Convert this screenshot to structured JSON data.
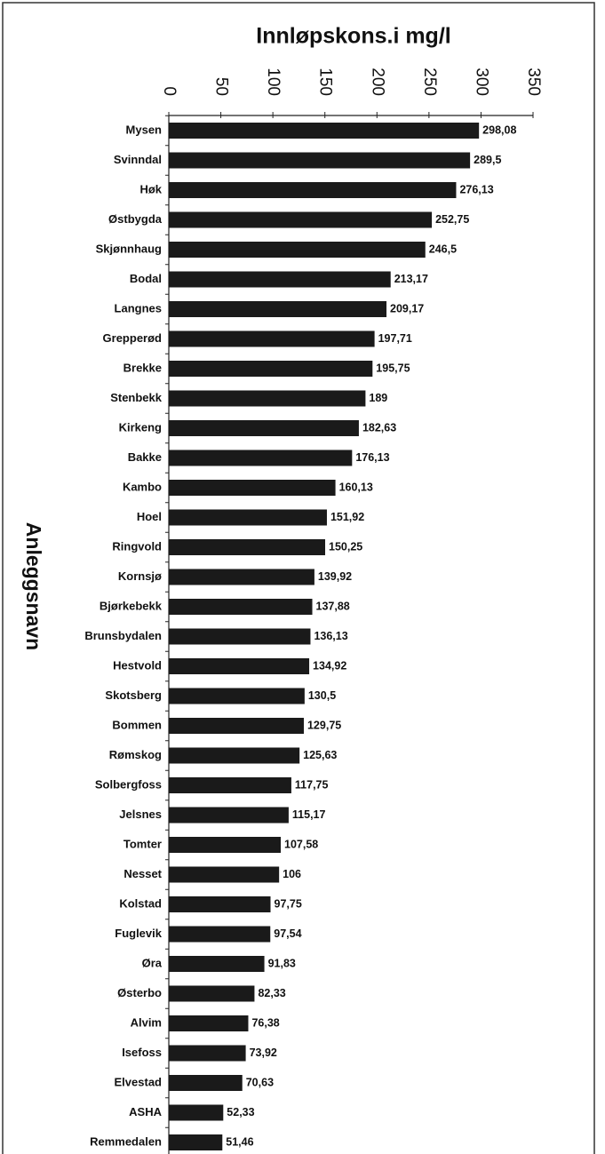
{
  "chart_data": {
    "type": "bar",
    "orientation": "horizontal",
    "title": "Innløpskons.i mg/l",
    "y_label": "Anleggsnavn",
    "categories": [
      "Mysen",
      "Svinndal",
      "Høk",
      "Østbygda",
      "Skjønnhaug",
      "Bodal",
      "Langnes",
      "Grepperød",
      "Brekke",
      "Stenbekk",
      "Kirkeng",
      "Bakke",
      "Kambo",
      "Hoel",
      "Ringvold",
      "Kornsjø",
      "Bjørkebekk",
      "Brunsbydalen",
      "Hestvold",
      "Skotsberg",
      "Bommen",
      "Rømskog",
      "Solbergfoss",
      "Jelsnes",
      "Tomter",
      "Nesset",
      "Kolstad",
      "Fuglevik",
      "Øra",
      "Østerbo",
      "Alvim",
      "Isefoss",
      "Elvestad",
      "ASHA",
      "Remmedalen"
    ],
    "values": [
      298.08,
      289.5,
      276.13,
      252.75,
      246.5,
      213.17,
      209.17,
      197.71,
      195.75,
      189,
      182.63,
      176.13,
      160.13,
      151.92,
      150.25,
      139.92,
      137.88,
      136.13,
      134.92,
      130.5,
      129.75,
      125.63,
      117.75,
      115.17,
      107.58,
      106,
      97.75,
      97.54,
      91.83,
      82.33,
      76.38,
      73.92,
      70.63,
      52.33,
      51.46
    ],
    "value_labels": [
      "298,08",
      "289,5",
      "276,13",
      "252,75",
      "246,5",
      "213,17",
      "209,17",
      "197,71",
      "195,75",
      "189",
      "182,63",
      "176,13",
      "160,13",
      "151,92",
      "150,25",
      "139,92",
      "137,88",
      "136,13",
      "134,92",
      "130,5",
      "129,75",
      "125,63",
      "117,75",
      "115,17",
      "107,58",
      "106",
      "97,75",
      "97,54",
      "91,83",
      "82,33",
      "76,38",
      "73,92",
      "70,63",
      "52,33",
      "51,46"
    ],
    "color": "#1a1a1a",
    "xlim": [
      0,
      350
    ],
    "xticks": [
      0,
      50,
      100,
      150,
      200,
      250,
      300,
      350
    ]
  }
}
